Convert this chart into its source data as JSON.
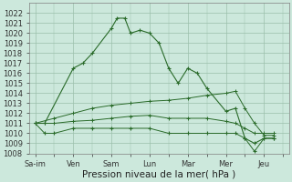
{
  "day_labels": [
    "Sa’im",
    "Ven",
    "Sam",
    "Lun",
    "Mar",
    "Mer",
    "Jeu"
  ],
  "day_positions": [
    0,
    2,
    4,
    6,
    8,
    10,
    12
  ],
  "line_main_x": [
    0,
    0.5,
    2,
    2.5,
    3,
    4,
    4.3,
    4.7,
    5,
    5.5,
    6,
    6.5,
    7,
    7.5,
    8,
    8.5,
    9,
    10,
    10.5,
    11,
    11.5,
    12,
    12.5
  ],
  "line_main_y": [
    1011,
    1011,
    1016.5,
    1017,
    1018,
    1020.5,
    1021.5,
    1021.5,
    1020,
    1020.3,
    1020,
    1019,
    1016.5,
    1015,
    1016.5,
    1016,
    1014.5,
    1012.2,
    1012.5,
    1009.5,
    1009,
    1009.5,
    1009.5
  ],
  "line_low_x": [
    0,
    0.5,
    1,
    2,
    3,
    4,
    5,
    6,
    7,
    8,
    9,
    10,
    10.5,
    11,
    11.5,
    12,
    12.5
  ],
  "line_low_y": [
    1011,
    1010,
    1010,
    1010.5,
    1010.5,
    1010.5,
    1010.5,
    1010.5,
    1010,
    1010,
    1010,
    1010,
    1010,
    1009.5,
    1008.2,
    1009.5,
    1009.5
  ],
  "line_mid1_x": [
    0,
    0.5,
    1,
    2,
    3,
    4,
    5,
    6,
    7,
    8,
    9,
    10,
    10.5,
    11,
    11.5,
    12,
    12.5
  ],
  "line_mid1_y": [
    1011,
    1011,
    1011,
    1011.2,
    1011.3,
    1011.5,
    1011.7,
    1011.8,
    1011.5,
    1011.5,
    1011.5,
    1011.2,
    1011,
    1010.5,
    1010,
    1010,
    1010
  ],
  "line_mid2_x": [
    0,
    1,
    2,
    3,
    4,
    5,
    6,
    7,
    8,
    9,
    10,
    10.5,
    11,
    11.5,
    12,
    12.5
  ],
  "line_mid2_y": [
    1011,
    1011.5,
    1012,
    1012.5,
    1012.8,
    1013,
    1013.2,
    1013.3,
    1013.5,
    1013.8,
    1014,
    1014.2,
    1012.5,
    1011,
    1009.8,
    1009.8
  ],
  "ylim": [
    1008,
    1023
  ],
  "yticks": [
    1008,
    1009,
    1010,
    1011,
    1012,
    1013,
    1014,
    1015,
    1016,
    1017,
    1018,
    1019,
    1020,
    1021,
    1022
  ],
  "xlim": [
    -0.3,
    13.3
  ],
  "line_color": "#2a6b2a",
  "bg_color": "#cce8dc",
  "grid_color": "#9bbfab",
  "xlabel": "Pression niveau de la mer( hPa )",
  "xlabel_fontsize": 7.5,
  "tick_fontsize": 6
}
